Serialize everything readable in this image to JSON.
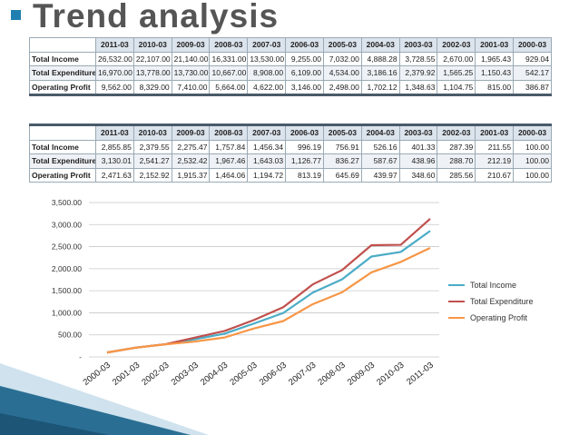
{
  "title": "Trend analysis",
  "tables": [
    {
      "years": [
        "2011-03",
        "2010-03",
        "2009-03",
        "2008-03",
        "2007-03",
        "2006-03",
        "2005-03",
        "2004-03",
        "2003-03",
        "2002-03",
        "2001-03",
        "2000-03"
      ],
      "rows": [
        {
          "label": "Total Income",
          "values": [
            "26,532.00",
            "22,107.00",
            "21,140.00",
            "16,331.00",
            "13,530.00",
            "9,255.00",
            "7,032.00",
            "4,888.28",
            "3,728.55",
            "2,670.00",
            "1,965.43",
            "929.04"
          ]
        },
        {
          "label": "Total Expenditure",
          "values": [
            "16,970.00",
            "13,778.00",
            "13,730.00",
            "10,667.00",
            "8,908.00",
            "6,109.00",
            "4,534.00",
            "3,186.16",
            "2,379.92",
            "1,565.25",
            "1,150.43",
            "542.17"
          ]
        },
        {
          "label": "Operating Profit",
          "values": [
            "9,562.00",
            "8,329.00",
            "7,410.00",
            "5,664.00",
            "4,622.00",
            "3,146.00",
            "2,498.00",
            "1,702.12",
            "1,348.63",
            "1,104.75",
            "815.00",
            "386.87"
          ]
        }
      ]
    },
    {
      "years": [
        "2011-03",
        "2010-03",
        "2009-03",
        "2008-03",
        "2007-03",
        "2006-03",
        "2005-03",
        "2004-03",
        "2003-03",
        "2002-03",
        "2001-03",
        "2000-03"
      ],
      "rows": [
        {
          "label": "Total Income",
          "values": [
            "2,855.85",
            "2,379.55",
            "2,275.47",
            "1,757.84",
            "1,456.34",
            "996.19",
            "756.91",
            "526.16",
            "401.33",
            "287.39",
            "211.55",
            "100.00"
          ]
        },
        {
          "label": "Total Expenditure",
          "values": [
            "3,130.01",
            "2,541.27",
            "2,532.42",
            "1,967.46",
            "1,643.03",
            "1,126.77",
            "836.27",
            "587.67",
            "438.96",
            "288.70",
            "212.19",
            "100.00"
          ]
        },
        {
          "label": "Operating Profit",
          "values": [
            "2,471.63",
            "2,152.92",
            "1,915.37",
            "1,464.06",
            "1,194.72",
            "813.19",
            "645.69",
            "439.97",
            "348.60",
            "285.56",
            "210.67",
            "100.00"
          ]
        }
      ]
    }
  ],
  "chart_data": {
    "type": "line",
    "categories": [
      "2000-03",
      "2001-03",
      "2002-03",
      "2003-03",
      "2004-03",
      "2005-03",
      "2006-03",
      "2007-03",
      "2008-03",
      "2009-03",
      "2010-03",
      "2011-03"
    ],
    "series": [
      {
        "name": "Total Income",
        "color": "#4aacc6",
        "values": [
          100.0,
          211.55,
          287.39,
          401.33,
          526.16,
          756.91,
          996.19,
          1456.34,
          1757.84,
          2275.47,
          2379.55,
          2855.85
        ]
      },
      {
        "name": "Total Expenditure",
        "color": "#c0504d",
        "values": [
          100.0,
          212.19,
          288.7,
          438.96,
          587.67,
          836.27,
          1126.77,
          1643.03,
          1967.46,
          2532.42,
          2541.27,
          3130.01
        ]
      },
      {
        "name": "Operating Profit",
        "color": "#f79646",
        "values": [
          100.0,
          210.67,
          285.56,
          348.6,
          439.97,
          645.69,
          813.19,
          1194.72,
          1464.06,
          1915.37,
          2152.92,
          2471.63
        ]
      }
    ],
    "yticks": [
      "-",
      "500.00",
      "1,000.00",
      "1,500.00",
      "2,000.00",
      "2,500.00",
      "3,000.00",
      "3,500.00"
    ],
    "ylim": [
      0,
      3500
    ],
    "grid": true,
    "legend": "right"
  }
}
